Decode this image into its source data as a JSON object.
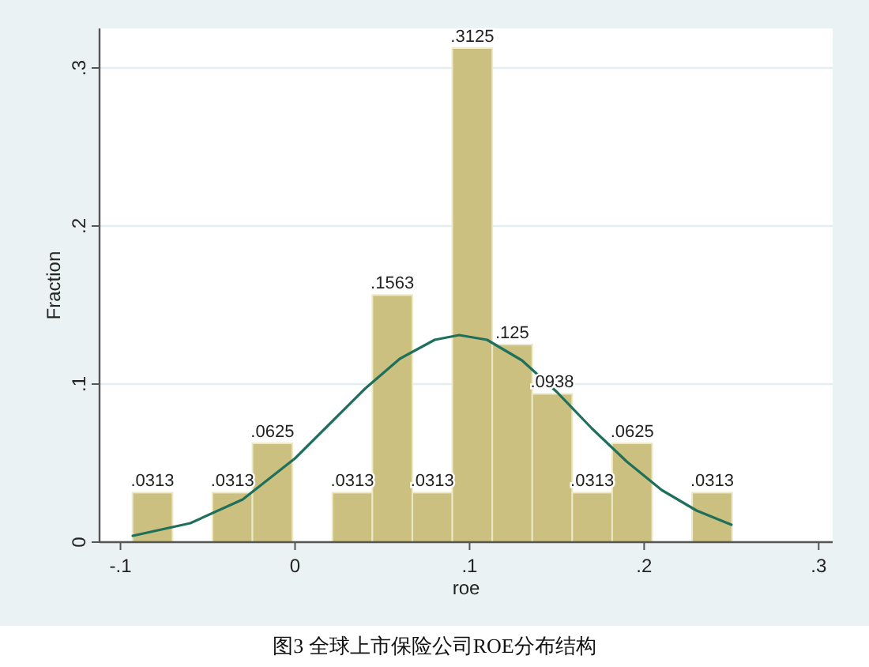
{
  "chart_data": {
    "type": "histogram",
    "bins": [
      -0.0931,
      -0.0702,
      -0.0473,
      -0.0244,
      -0.0015,
      0.0214,
      0.0443,
      0.0672,
      0.0901,
      0.113,
      0.1359,
      0.1588,
      0.1817,
      0.2046,
      0.2275,
      0.2504
    ],
    "series": [
      {
        "color": "#cbc07f",
        "values": [
          0.0313,
          0,
          0.0313,
          0.0625,
          0,
          0.0313,
          0.1563,
          0.0313,
          0.3125,
          0.125,
          0.0938,
          0.0313,
          0.0625,
          0,
          0.0313
        ],
        "value_labels": [
          ".0313",
          null,
          ".0313",
          ".0625",
          null,
          ".0313",
          ".1563",
          ".0313",
          ".3125",
          ".125",
          ".0938",
          ".0313",
          ".0625",
          null,
          ".0313"
        ]
      },
      {
        "type": "line",
        "color": "#1e6f5c",
        "x": [
          -0.093,
          -0.06,
          -0.03,
          0,
          0.02,
          0.04,
          0.06,
          0.08,
          0.094,
          0.11,
          0.13,
          0.15,
          0.17,
          0.19,
          0.21,
          0.23,
          0.25
        ],
        "values": [
          0.004,
          0.012,
          0.027,
          0.053,
          0.075,
          0.097,
          0.116,
          0.128,
          0.131,
          0.128,
          0.115,
          0.095,
          0.072,
          0.051,
          0.033,
          0.02,
          0.011
        ]
      }
    ],
    "xlabel": "roe",
    "ylabel": "Fraction",
    "xlim": [
      -0.112,
      0.308
    ],
    "ylim": [
      0,
      0.325
    ],
    "xticks": [
      {
        "value": -0.1,
        "label": "-.1"
      },
      0,
      {
        "value": 0.1,
        "label": ".1"
      },
      {
        "value": 0.2,
        "label": ".2"
      },
      {
        "value": 0.3,
        "label": ".3"
      }
    ],
    "yticks": [
      0,
      {
        "value": 0.1,
        "label": ".1"
      },
      {
        "value": 0.2,
        "label": ".2"
      },
      {
        "value": 0.3,
        "label": ".3"
      }
    ],
    "grid": "y",
    "annotations": [
      "图3  全球上市保险公司ROE分布结构"
    ]
  }
}
